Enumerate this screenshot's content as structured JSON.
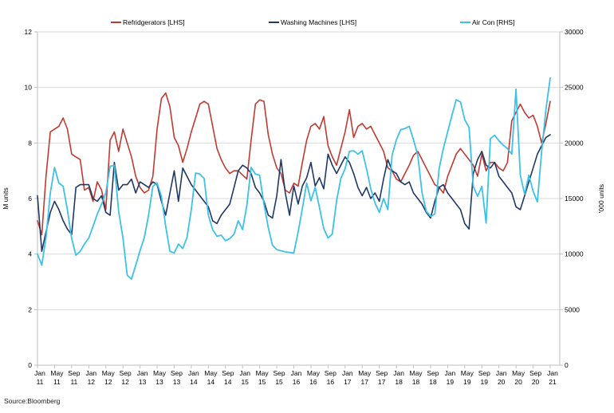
{
  "legend": {
    "items": [
      {
        "label": "Refridgerators [LHS]",
        "color": "#C13A32"
      },
      {
        "label": "Washing Machines [LHS]",
        "color": "#1F3864"
      },
      {
        "label": "Air Con [RHS]",
        "color": "#3EC1E8"
      }
    ]
  },
  "axes": {
    "left_title": "M units",
    "right_title": "'000 units"
  },
  "source": "Source:Bloomberg",
  "colors": {
    "gridline": "#D9D9D9",
    "axis_line": "#BFBFBF",
    "text": "#000000"
  },
  "chart_data": {
    "type": "line",
    "title": "",
    "x_frequency": "monthly",
    "x_start": "Jan 2011",
    "x_end": "Jan 2021",
    "grid": "horizontal",
    "legend_position": "top",
    "x_tick_labels": [
      [
        "Jan",
        "11"
      ],
      [
        "May",
        "11"
      ],
      [
        "Sep",
        "11"
      ],
      [
        "Jan",
        "12"
      ],
      [
        "May",
        "12"
      ],
      [
        "Sep",
        "12"
      ],
      [
        "Jan",
        "13"
      ],
      [
        "May",
        "13"
      ],
      [
        "Sep",
        "13"
      ],
      [
        "Jan",
        "14"
      ],
      [
        "May",
        "14"
      ],
      [
        "Sep",
        "14"
      ],
      [
        "Jan",
        "15"
      ],
      [
        "May",
        "15"
      ],
      [
        "Sep",
        "15"
      ],
      [
        "Jan",
        "16"
      ],
      [
        "May",
        "16"
      ],
      [
        "Sep",
        "16"
      ],
      [
        "Jan",
        "17"
      ],
      [
        "May",
        "17"
      ],
      [
        "Sep",
        "17"
      ],
      [
        "Jan",
        "18"
      ],
      [
        "May",
        "18"
      ],
      [
        "Sep",
        "18"
      ],
      [
        "Jan",
        "19"
      ],
      [
        "May",
        "19"
      ],
      [
        "Sep",
        "19"
      ],
      [
        "Jan",
        "20"
      ],
      [
        "May",
        "20"
      ],
      [
        "Sep",
        "20"
      ],
      [
        "Jan",
        "21"
      ]
    ],
    "left_axis": {
      "title": "M units",
      "min": 0,
      "max": 12,
      "step": 2
    },
    "right_axis": {
      "title": "'000 units",
      "min": 0,
      "max": 30000,
      "step": 5000
    },
    "series": [
      {
        "name": "Refridgerators [LHS]",
        "axis": "left",
        "unit": "M units",
        "color": "#C13A32",
        "values": [
          5.2,
          4.7,
          6.8,
          8.4,
          8.5,
          8.6,
          8.9,
          8.5,
          7.6,
          7.5,
          7.4,
          6.3,
          6.4,
          5.9,
          6.6,
          6.3,
          5.6,
          8.1,
          8.4,
          7.7,
          8.5,
          8.0,
          7.5,
          6.8,
          6.4,
          6.2,
          6.3,
          6.8,
          8.5,
          9.6,
          9.8,
          9.3,
          8.2,
          7.9,
          7.3,
          7.8,
          8.4,
          8.9,
          9.4,
          9.5,
          9.4,
          8.6,
          7.8,
          7.4,
          7.1,
          6.9,
          7.0,
          7.0,
          6.85,
          6.7,
          8.1,
          9.4,
          9.55,
          9.5,
          8.3,
          7.6,
          7.1,
          6.9,
          6.3,
          6.2,
          6.55,
          6.45,
          7.3,
          8.1,
          8.6,
          8.7,
          8.5,
          8.95,
          7.9,
          7.5,
          7.2,
          7.8,
          8.4,
          9.2,
          8.2,
          8.6,
          8.7,
          8.5,
          8.6,
          8.3,
          8.0,
          7.7,
          7.1,
          7.0,
          6.7,
          6.6,
          6.9,
          7.2,
          7.55,
          7.7,
          7.4,
          7.1,
          6.8,
          6.5,
          6.4,
          6.2,
          6.8,
          7.2,
          7.6,
          7.8,
          7.6,
          7.4,
          7.2,
          6.8,
          7.6,
          7.0,
          7.3,
          7.3,
          7.1,
          7.0,
          7.3,
          8.8,
          9.1,
          9.4,
          9.1,
          8.9,
          9.0,
          8.6,
          8.0,
          8.7,
          9.5
        ]
      },
      {
        "name": "Washing Machines [LHS]",
        "axis": "left",
        "unit": "M units",
        "color": "#1F3864",
        "values": [
          6.1,
          4.1,
          4.8,
          5.5,
          5.9,
          5.6,
          5.2,
          4.9,
          4.7,
          6.4,
          6.5,
          6.5,
          6.5,
          6.0,
          5.9,
          6.1,
          5.5,
          5.4,
          7.3,
          6.3,
          6.5,
          6.5,
          6.7,
          6.2,
          6.6,
          6.5,
          6.4,
          6.6,
          6.5,
          5.9,
          5.4,
          6.2,
          7.0,
          5.9,
          7.1,
          6.8,
          6.5,
          6.3,
          6.1,
          5.9,
          5.7,
          5.2,
          5.1,
          5.4,
          5.6,
          5.8,
          6.4,
          7.0,
          7.2,
          7.1,
          6.9,
          6.4,
          6.2,
          5.9,
          5.4,
          5.3,
          6.1,
          7.4,
          6.2,
          5.4,
          6.45,
          5.8,
          6.45,
          6.75,
          7.3,
          6.45,
          6.75,
          6.35,
          7.6,
          7.2,
          6.9,
          7.2,
          7.5,
          7.3,
          6.9,
          6.4,
          6.1,
          6.4,
          6.0,
          6.2,
          5.9,
          6.7,
          7.4,
          7.0,
          6.9,
          6.6,
          6.5,
          6.6,
          6.2,
          6.0,
          5.8,
          5.5,
          5.3,
          5.9,
          6.4,
          6.5,
          6.2,
          6.0,
          5.8,
          5.6,
          5.1,
          4.9,
          6.9,
          7.4,
          7.7,
          7.2,
          7.1,
          7.3,
          6.8,
          6.6,
          6.4,
          6.2,
          5.7,
          5.6,
          6.1,
          6.6,
          7.1,
          7.6,
          7.9,
          8.2,
          8.3
        ]
      },
      {
        "name": "Air Con [RHS]",
        "axis": "right",
        "unit": "'000 units",
        "color": "#3EC1E8",
        "values": [
          10000,
          9000,
          11500,
          15500,
          17800,
          16400,
          16100,
          14000,
          11400,
          9900,
          10250,
          10900,
          11450,
          12500,
          13600,
          14500,
          15500,
          17900,
          18000,
          13850,
          11450,
          8100,
          7750,
          9000,
          10300,
          11500,
          13500,
          16100,
          16400,
          15200,
          12500,
          10250,
          10100,
          10900,
          10500,
          11500,
          14000,
          17300,
          17200,
          16800,
          13500,
          12200,
          11600,
          11700,
          11200,
          11400,
          11800,
          13000,
          12200,
          14400,
          17800,
          17200,
          17100,
          14500,
          12400,
          10800,
          10400,
          10300,
          10200,
          10150,
          10100,
          12000,
          14100,
          16400,
          14800,
          16000,
          14200,
          12300,
          11450,
          11800,
          14800,
          16800,
          17700,
          19250,
          19300,
          19000,
          19300,
          17700,
          15900,
          14600,
          13750,
          15000,
          14000,
          18900,
          20300,
          21200,
          21300,
          21500,
          20300,
          18900,
          15500,
          13850,
          13400,
          13600,
          17700,
          19500,
          21000,
          22500,
          23900,
          23700,
          22100,
          21400,
          16100,
          15200,
          16100,
          12800,
          20400,
          20700,
          20200,
          19800,
          19500,
          19000,
          24850,
          17100,
          15400,
          17100,
          15650,
          14700,
          19250,
          23000,
          25850
        ]
      }
    ]
  }
}
